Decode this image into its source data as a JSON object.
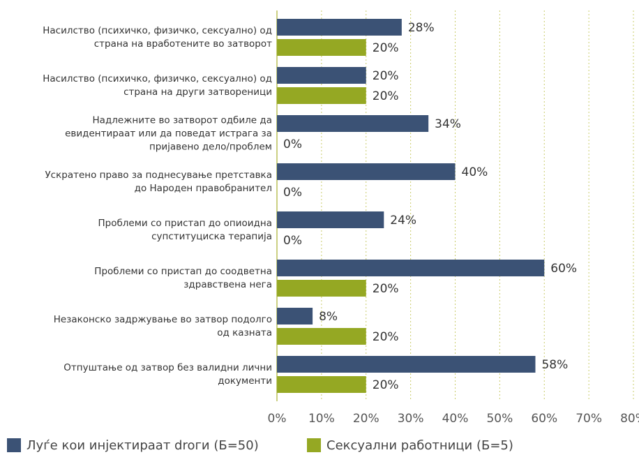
{
  "chart_data": {
    "type": "hbar",
    "categories": [
      [
        "Насилство (психичко, физичко, сексуално) од",
        "страна на вработените во затворот"
      ],
      [
        "Насилство (психичко, физичко, сексуално) од",
        "страна на други затвореници"
      ],
      [
        "Надлежните во затворот одбиле да",
        "евидентираат или да поведат истрага за",
        "пријавено дело/проблем"
      ],
      [
        "Ускратено право за поднесување претставка",
        "до Народен правобранител"
      ],
      [
        "Проблеми со пристап до опиоидна",
        "супституциска терапија"
      ],
      [
        "Проблеми со пристап до соодветна",
        "здравствена нега"
      ],
      [
        "Незаконско задржување во затвор подолго",
        "од казната"
      ],
      [
        "Отпуштање од затвор без валидни лични",
        "документи"
      ]
    ],
    "series": [
      {
        "name": "Луѓе кои инјектираат droги (Б=50)",
        "color": "#3b5275",
        "values": [
          28,
          20,
          34,
          40,
          24,
          60,
          8,
          58
        ],
        "value_labels": [
          "28%",
          "20%",
          "34%",
          "40%",
          "24%",
          "60%",
          "8%",
          "58%"
        ]
      },
      {
        "name": "Сексуални работници (Б=5)",
        "color": "#95a823",
        "values": [
          20,
          20,
          0,
          0,
          0,
          20,
          20,
          20
        ],
        "value_labels": [
          "20%",
          "20%",
          "0%",
          "0%",
          "0%",
          "20%",
          "20%",
          "20%"
        ]
      }
    ],
    "xlim": [
      0,
      80
    ],
    "xticks": [
      {
        "value": 0,
        "label": "0%"
      },
      {
        "value": 10,
        "label": "10%"
      },
      {
        "value": 20,
        "label": "20%"
      },
      {
        "value": 30,
        "label": "30%"
      },
      {
        "value": 40,
        "label": "40%"
      },
      {
        "value": 50,
        "label": "50%"
      },
      {
        "value": 60,
        "label": "60%"
      },
      {
        "value": 70,
        "label": "70%"
      },
      {
        "value": 80,
        "label": "80%"
      }
    ],
    "grid": true,
    "legend": "bottom"
  }
}
